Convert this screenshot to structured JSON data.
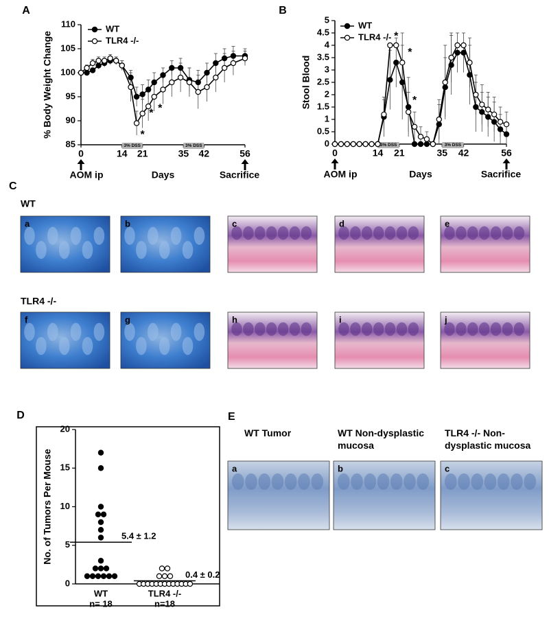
{
  "chart_data": [
    {
      "type": "line",
      "panel_label": "A",
      "y_label": "% Body Weight Change",
      "x_label": "Days",
      "x": [
        0,
        2,
        4,
        6,
        8,
        10,
        12,
        14,
        17,
        19,
        21,
        23,
        25,
        28,
        31,
        34,
        37,
        40,
        43,
        46,
        49,
        52,
        56
      ],
      "series": [
        {
          "name": "WT",
          "color": "#000000",
          "marker_fill": "#000000",
          "values": [
            100,
            100,
            100.5,
            101.5,
            102,
            102.5,
            102.5,
            101.5,
            99,
            95,
            95.5,
            96.5,
            98,
            99.5,
            101,
            101,
            98.5,
            98,
            100,
            102,
            103,
            103.5,
            103.5
          ],
          "errors": [
            0.3,
            0.5,
            0.5,
            0.7,
            0.8,
            0.8,
            0.8,
            1,
            1.5,
            2,
            2,
            2,
            2,
            1.5,
            1.5,
            2,
            2.5,
            2.5,
            2,
            2,
            2,
            2,
            1.5
          ]
        },
        {
          "name": "TLR4 -/-",
          "color": "#000000",
          "marker_fill": "#ffffff",
          "values": [
            100,
            101,
            102,
            102.5,
            102.5,
            103,
            102.5,
            101.5,
            97,
            89.5,
            91.5,
            93,
            95,
            96.5,
            98,
            99,
            98,
            96,
            97,
            99,
            101,
            102,
            103
          ],
          "errors": [
            0.3,
            0.6,
            0.8,
            0.8,
            0.8,
            0.8,
            0.8,
            1,
            3,
            2.5,
            3,
            3,
            3,
            3,
            3,
            3,
            3,
            3.5,
            3,
            3,
            3,
            2.5,
            1.5
          ]
        }
      ],
      "xlim": [
        0,
        56
      ],
      "xticks": [
        0,
        14,
        21,
        35,
        42,
        56
      ],
      "ylim": [
        85,
        110
      ],
      "yticks": [
        85,
        90,
        95,
        100,
        105,
        110
      ],
      "shaded_regions": [
        {
          "label": "3% DSS",
          "x": [
            14,
            21
          ]
        },
        {
          "label": "3% DSS",
          "x": [
            35,
            42
          ]
        }
      ],
      "x_markers": [
        {
          "label": "AOM ip",
          "x": 0
        },
        {
          "label": "Sacrifice",
          "x": 56
        }
      ],
      "annotations": [
        {
          "text": "*",
          "x": 21,
          "y": 87
        },
        {
          "text": "*",
          "x": 24,
          "y": 91.5
        },
        {
          "text": "*",
          "x": 27,
          "y": 92.5
        }
      ],
      "legend": "upper left"
    },
    {
      "type": "line",
      "panel_label": "B",
      "y_label": "Stool Blood",
      "x_label": "Days",
      "x": [
        0,
        2,
        4,
        6,
        8,
        10,
        12,
        14,
        16,
        18,
        20,
        22,
        24,
        26,
        28,
        30,
        32,
        34,
        36,
        38,
        40,
        42,
        44,
        46,
        48,
        50,
        52,
        54,
        56
      ],
      "series": [
        {
          "name": "WT",
          "color": "#000000",
          "marker_fill": "#000000",
          "values": [
            0,
            0,
            0,
            0,
            0,
            0,
            0,
            0,
            1.1,
            2.6,
            3.3,
            2.5,
            1.5,
            0,
            0,
            0,
            0,
            0.8,
            2.3,
            3.2,
            3.7,
            3.7,
            2.8,
            1.5,
            1.3,
            1.1,
            0.9,
            0.6,
            0.4
          ],
          "errors": [
            0,
            0,
            0,
            0,
            0,
            0,
            0,
            0,
            0.8,
            1.2,
            1,
            1.5,
            1.2,
            0,
            0,
            0,
            0,
            0.8,
            1.2,
            1.2,
            0.8,
            0.8,
            1.2,
            1,
            0.8,
            0.8,
            0.8,
            0.6,
            0.4
          ]
        },
        {
          "name": "TLR4 -/-",
          "color": "#000000",
          "marker_fill": "#ffffff",
          "values": [
            0,
            0,
            0,
            0,
            0,
            0,
            0,
            0,
            1.2,
            4,
            4,
            3.3,
            1.3,
            0.7,
            0.3,
            0.2,
            0,
            1,
            2.5,
            3.5,
            4,
            4,
            3.3,
            2,
            1.6,
            1.4,
            1.2,
            0.9,
            0.8
          ],
          "errors": [
            0,
            0,
            0,
            0,
            0,
            0,
            0,
            0,
            0.6,
            0,
            0,
            1.2,
            0.8,
            0.6,
            0.4,
            0.3,
            0,
            0.8,
            1.5,
            1,
            0,
            0,
            1,
            0.8,
            0.8,
            0.7,
            0.7,
            0.6,
            0.5
          ]
        }
      ],
      "xlim": [
        0,
        56
      ],
      "xticks": [
        0,
        14,
        21,
        35,
        42,
        56
      ],
      "ylim": [
        0,
        5
      ],
      "yticks": [
        0,
        0.5,
        1,
        1.5,
        2,
        2.5,
        3,
        3.5,
        4,
        4.5,
        5
      ],
      "shaded_regions": [
        {
          "label": "3% DSS",
          "x": [
            14,
            21
          ]
        },
        {
          "label": "3% DSS",
          "x": [
            35,
            42
          ]
        }
      ],
      "x_markers": [
        {
          "label": "AOM ip",
          "x": 0
        },
        {
          "label": "Sacrifice",
          "x": 56
        }
      ],
      "annotations": [
        {
          "text": "*",
          "x": 20,
          "y": 4.35
        },
        {
          "text": "*",
          "x": 24.5,
          "y": 3.7
        },
        {
          "text": "*",
          "x": 26,
          "y": 1.75
        }
      ],
      "legend": "upper left"
    },
    {
      "type": "strip",
      "panel_label": "D",
      "y_label": "No. of Tumors Per Mouse",
      "categories": [
        "WT",
        "TLR4 -/-"
      ],
      "n_labels": [
        "n= 18",
        "n=18"
      ],
      "series": [
        {
          "name": "WT",
          "color": "#000000",
          "marker_fill": "#000000",
          "values": [
            17,
            15,
            10,
            9,
            9,
            8,
            7,
            6,
            3,
            2,
            2,
            2,
            1,
            1,
            1,
            1,
            1,
            1
          ]
        },
        {
          "name": "TLR4 -/-",
          "color": "#000000",
          "marker_fill": "#ffffff",
          "values": [
            2,
            2,
            1,
            1,
            1,
            0,
            0,
            0,
            0,
            0,
            0,
            0,
            0,
            0,
            0,
            0,
            0,
            0
          ]
        }
      ],
      "means": [
        5.4,
        0.4
      ],
      "mean_labels": [
        "5.4 ± 1.2",
        "0.4 ± 0.2"
      ],
      "ylim": [
        0,
        20
      ],
      "yticks": [
        0,
        5,
        10,
        15,
        20
      ]
    }
  ],
  "panel_c": {
    "letter": "C",
    "groups": [
      {
        "label": "WT",
        "images": [
          "a",
          "b",
          "c",
          "d",
          "e"
        ]
      },
      {
        "label": "TLR4 -/-",
        "images": [
          "f",
          "g",
          "h",
          "i",
          "j"
        ]
      }
    ]
  },
  "panel_e": {
    "letter": "E",
    "columns": [
      {
        "heading": "WT Tumor",
        "image": "a"
      },
      {
        "heading": "WT Non-dysplastic mucosa",
        "image": "b"
      },
      {
        "heading": "TLR4 -/- Non-dysplastic mucosa",
        "image": "c"
      }
    ]
  }
}
